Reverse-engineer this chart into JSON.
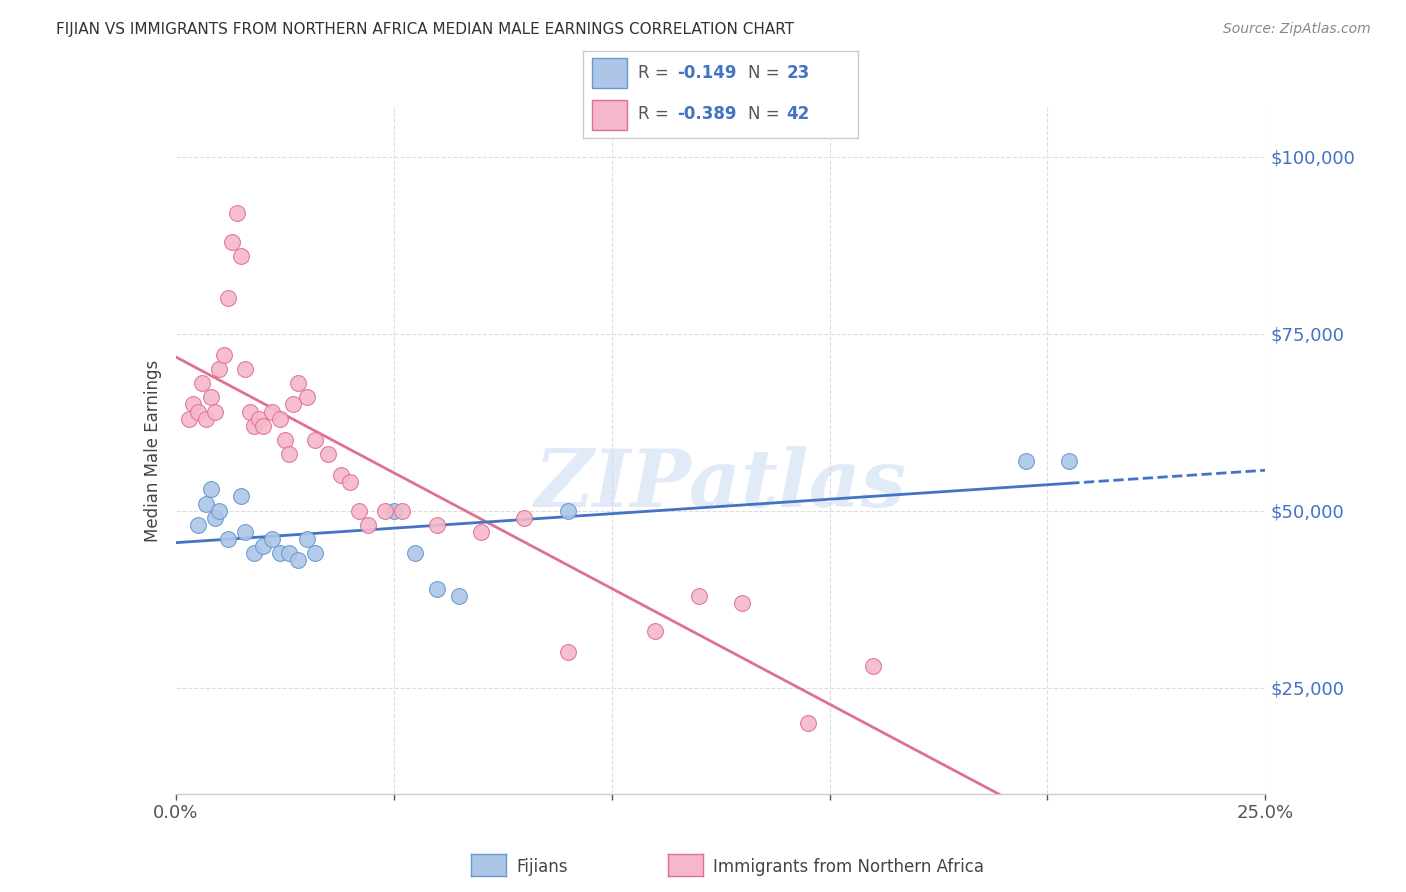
{
  "title": "FIJIAN VS IMMIGRANTS FROM NORTHERN AFRICA MEDIAN MALE EARNINGS CORRELATION CHART",
  "source": "Source: ZipAtlas.com",
  "ylabel": "Median Male Earnings",
  "yticks": [
    25000,
    50000,
    75000,
    100000
  ],
  "ytick_labels": [
    "$25,000",
    "$50,000",
    "$75,000",
    "$100,000"
  ],
  "xmin": 0.0,
  "xmax": 0.25,
  "ymin": 10000,
  "ymax": 107000,
  "fijian_color": "#adc6e8",
  "fijian_edge_color": "#6699cc",
  "fijian_line_color": "#4472c4",
  "na_color": "#f5b8cb",
  "na_edge_color": "#e07090",
  "na_line_color": "#e07090",
  "text_color": "#4472c4",
  "axis_color": "#cccccc",
  "grid_color": "#dddddd",
  "watermark": "ZIPatlas",
  "watermark_color": "#c5d9f0",
  "legend_R1": "-0.149",
  "legend_N1": "23",
  "legend_R2": "-0.389",
  "legend_N2": "42",
  "fijian_R": -0.149,
  "fijian_intercept": 46800,
  "fijian_slope": -18000,
  "na_R": -0.389,
  "na_intercept": 65000,
  "na_slope": -120000,
  "fijian_x": [
    0.005,
    0.007,
    0.008,
    0.009,
    0.01,
    0.012,
    0.015,
    0.016,
    0.018,
    0.02,
    0.022,
    0.024,
    0.026,
    0.028,
    0.03,
    0.032,
    0.05,
    0.055,
    0.06,
    0.065,
    0.09,
    0.195,
    0.205
  ],
  "fijian_y": [
    48000,
    51000,
    53000,
    49000,
    50000,
    46000,
    52000,
    47000,
    44000,
    45000,
    46000,
    44000,
    44000,
    43000,
    46000,
    44000,
    50000,
    44000,
    39000,
    38000,
    50000,
    57000,
    57000
  ],
  "na_x": [
    0.003,
    0.004,
    0.005,
    0.006,
    0.007,
    0.008,
    0.009,
    0.01,
    0.011,
    0.012,
    0.013,
    0.014,
    0.015,
    0.016,
    0.017,
    0.018,
    0.019,
    0.02,
    0.022,
    0.024,
    0.025,
    0.026,
    0.027,
    0.028,
    0.03,
    0.032,
    0.035,
    0.038,
    0.04,
    0.042,
    0.044,
    0.048,
    0.052,
    0.06,
    0.07,
    0.08,
    0.09,
    0.11,
    0.12,
    0.13,
    0.145,
    0.16
  ],
  "na_y": [
    63000,
    65000,
    64000,
    68000,
    63000,
    66000,
    64000,
    70000,
    72000,
    80000,
    88000,
    92000,
    86000,
    70000,
    64000,
    62000,
    63000,
    62000,
    64000,
    63000,
    60000,
    58000,
    65000,
    68000,
    66000,
    60000,
    58000,
    55000,
    54000,
    50000,
    48000,
    50000,
    50000,
    48000,
    47000,
    49000,
    30000,
    33000,
    38000,
    37000,
    20000,
    28000
  ]
}
